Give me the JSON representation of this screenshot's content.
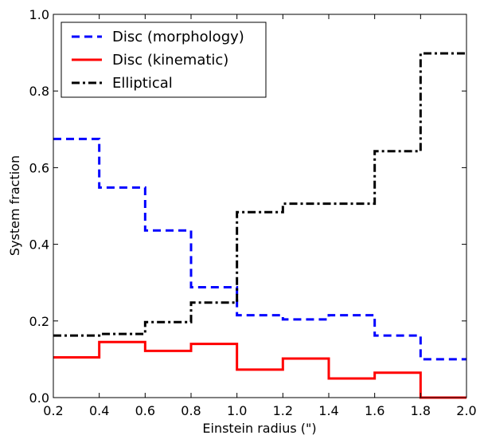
{
  "chart_data": {
    "type": "line",
    "step": "post",
    "title": "",
    "xlabel": "Einstein radius (\")",
    "ylabel": "System fraction",
    "xlim": [
      0.2,
      2.0
    ],
    "ylim": [
      0.0,
      1.0
    ],
    "grid": false,
    "legend_position": "top-left",
    "x_ticks": [
      "0.2",
      "0.4",
      "0.6",
      "0.8",
      "1.0",
      "1.2",
      "1.4",
      "1.6",
      "1.8",
      "2.0"
    ],
    "y_ticks": [
      "0.0",
      "0.2",
      "0.4",
      "0.6",
      "0.8",
      "1.0"
    ],
    "bin_edges": [
      0.2,
      0.4,
      0.6,
      0.8,
      1.0,
      1.2,
      1.4,
      1.6,
      1.8,
      2.0
    ],
    "series": [
      {
        "name": "Disc (morphology)",
        "color": "#0000ff",
        "style": "dashed",
        "values": [
          0.675,
          0.548,
          0.436,
          0.288,
          0.215,
          0.204,
          0.215,
          0.162,
          0.1
        ]
      },
      {
        "name": "Disc (kinematic)",
        "color": "#ff0000",
        "style": "solid",
        "values": [
          0.105,
          0.145,
          0.122,
          0.14,
          0.073,
          0.102,
          0.05,
          0.065,
          0.0
        ]
      },
      {
        "name": "Elliptical",
        "color": "#000000",
        "style": "dashdot",
        "values": [
          0.162,
          0.166,
          0.197,
          0.248,
          0.484,
          0.506,
          0.506,
          0.643,
          0.898
        ]
      }
    ]
  }
}
